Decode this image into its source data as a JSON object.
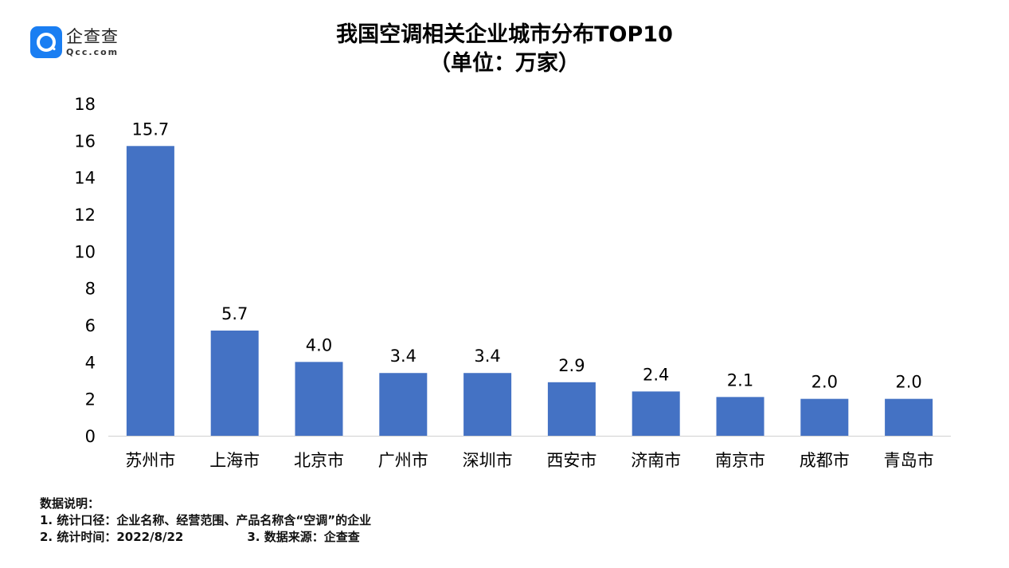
{
  "logo": {
    "name_cn": "企查查",
    "domain": "Qcc.com"
  },
  "chart_data": {
    "type": "bar",
    "title": "我国空调相关企业城市分布TOP10",
    "subtitle": "（单位：万家）",
    "categories": [
      "苏州市",
      "上海市",
      "北京市",
      "广州市",
      "深圳市",
      "西安市",
      "济南市",
      "南京市",
      "成都市",
      "青岛市"
    ],
    "values": [
      15.7,
      5.7,
      4.0,
      3.4,
      3.4,
      2.9,
      2.4,
      2.1,
      2.0,
      2.0
    ],
    "value_labels": [
      "15.7",
      "5.7",
      "4.0",
      "3.4",
      "3.4",
      "2.9",
      "2.4",
      "2.1",
      "2.0",
      "2.0"
    ],
    "ylim": [
      0,
      18
    ],
    "yticks": [
      0,
      2,
      4,
      6,
      8,
      10,
      12,
      14,
      16,
      18
    ],
    "grid": false,
    "bar_color": "#4472c4"
  },
  "notes": {
    "heading": "数据说明：",
    "line1": "1. 统计口径：企业名称、经营范围、产品名称含“空调”的企业",
    "line2a": "2. 统计时间：2022/8/22",
    "line2b": "3. 数据来源：企查查"
  }
}
